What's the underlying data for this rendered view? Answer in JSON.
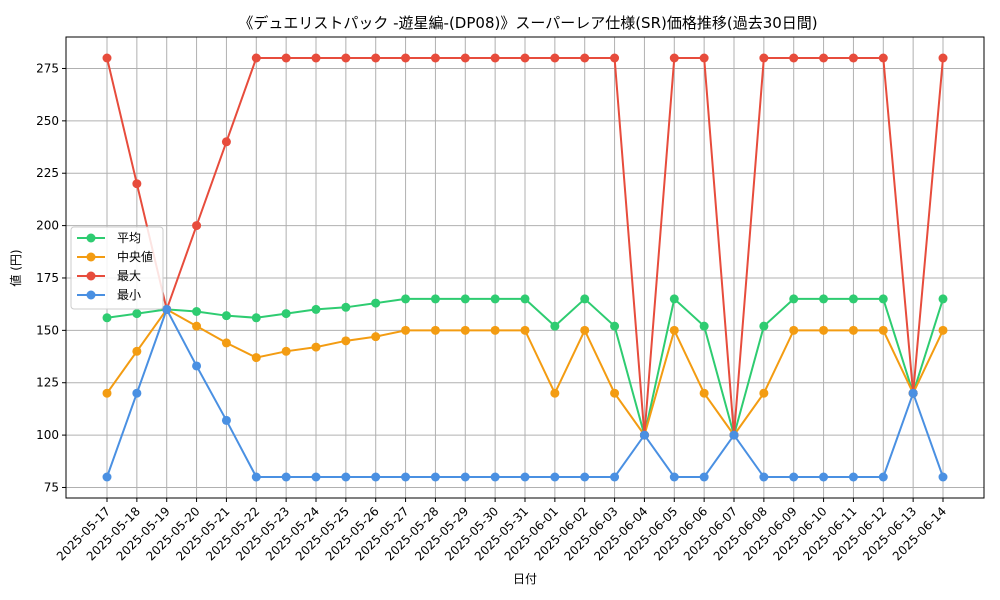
{
  "chart_data": {
    "type": "line",
    "title": "《デュエリストパック -遊星編-(DP08)》スーパーレア仕様(SR)価格推移(過去30日間)",
    "xlabel": "日付",
    "ylabel": "値 (円)",
    "ylim": [
      70,
      290
    ],
    "yticks": [
      75,
      100,
      125,
      150,
      175,
      200,
      225,
      250,
      275
    ],
    "grid": true,
    "legend_position": "center-left",
    "categories": [
      "2025-05-17",
      "2025-05-18",
      "2025-05-19",
      "2025-05-20",
      "2025-05-21",
      "2025-05-22",
      "2025-05-23",
      "2025-05-24",
      "2025-05-25",
      "2025-05-26",
      "2025-05-27",
      "2025-05-28",
      "2025-05-29",
      "2025-05-30",
      "2025-05-31",
      "2025-06-01",
      "2025-06-02",
      "2025-06-03",
      "2025-06-04",
      "2025-06-05",
      "2025-06-06",
      "2025-06-07",
      "2025-06-08",
      "2025-06-09",
      "2025-06-10",
      "2025-06-11",
      "2025-06-12",
      "2025-06-13",
      "2025-06-14"
    ],
    "series": [
      {
        "name": "平均",
        "color": "#2ecc71",
        "values": [
          156,
          158,
          160,
          159,
          157,
          156,
          158,
          160,
          161,
          163,
          165,
          165,
          165,
          165,
          165,
          152,
          165,
          152,
          100,
          165,
          152,
          100,
          152,
          165,
          165,
          165,
          165,
          120,
          165
        ]
      },
      {
        "name": "中央値",
        "color": "#f39c12",
        "values": [
          120,
          140,
          160,
          152,
          144,
          137,
          140,
          142,
          145,
          147,
          150,
          150,
          150,
          150,
          150,
          120,
          150,
          120,
          100,
          150,
          120,
          100,
          120,
          150,
          150,
          150,
          150,
          120,
          150
        ]
      },
      {
        "name": "最大",
        "color": "#e74c3c",
        "values": [
          280,
          220,
          160,
          200,
          240,
          280,
          280,
          280,
          280,
          280,
          280,
          280,
          280,
          280,
          280,
          280,
          280,
          280,
          100,
          280,
          280,
          100,
          280,
          280,
          280,
          280,
          280,
          120,
          280
        ]
      },
      {
        "name": "最小",
        "color": "#4a90e2",
        "values": [
          80,
          120,
          160,
          133,
          107,
          80,
          80,
          80,
          80,
          80,
          80,
          80,
          80,
          80,
          80,
          80,
          80,
          80,
          100,
          80,
          80,
          100,
          80,
          80,
          80,
          80,
          80,
          120,
          80
        ]
      }
    ]
  }
}
